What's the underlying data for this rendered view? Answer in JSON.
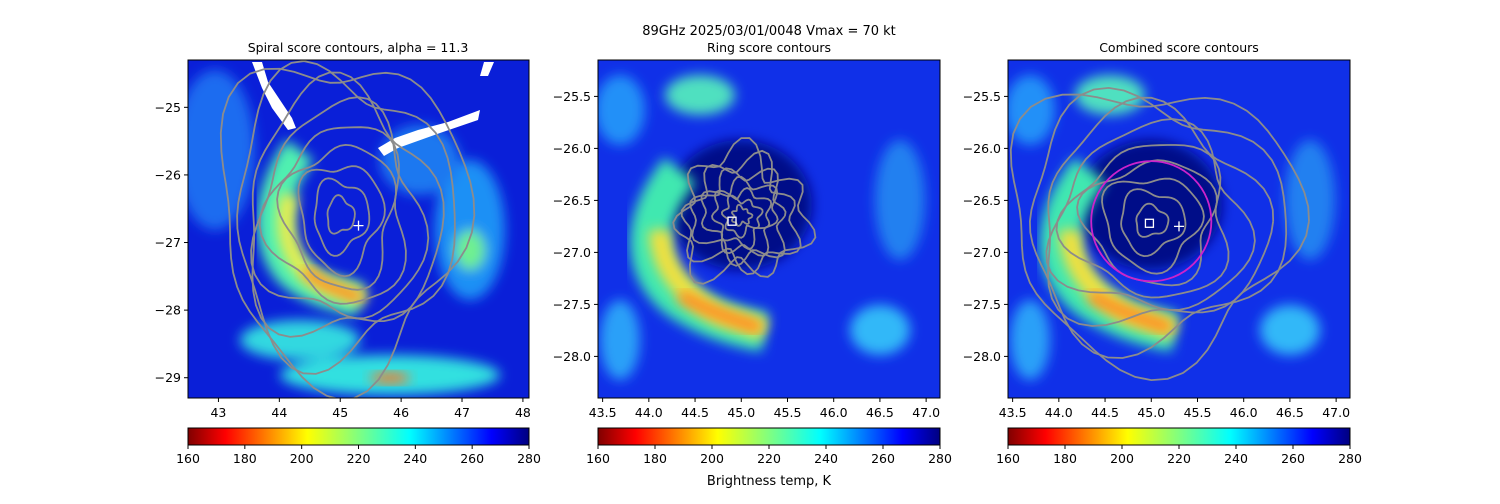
{
  "figure": {
    "suptitle_line1": "89GHz  2025/03/01/0048    Vmax = 70 kt",
    "colorbar_label": "Brightness temp, K"
  },
  "chart_data": [
    {
      "type": "heatmap",
      "title": "Spiral score contours, alpha = 11.3",
      "xlim": [
        42.5,
        48.1
      ],
      "ylim": [
        -29.3,
        -24.3
      ],
      "xticks": [
        "43",
        "44",
        "45",
        "46",
        "47",
        "48"
      ],
      "xtick_values": [
        43,
        44,
        45,
        46,
        47,
        48
      ],
      "yticks": [
        "−25",
        "−26",
        "−27",
        "−28",
        "−29"
      ],
      "ytick_values": [
        -25,
        -26,
        -27,
        -28,
        -29
      ],
      "contour_center": [
        45.0,
        -26.6
      ],
      "markers": [
        {
          "symbol": "+",
          "x": 45.3,
          "y": -26.75
        }
      ]
    },
    {
      "type": "heatmap",
      "title": "Ring score contours",
      "xlim": [
        43.45,
        47.15
      ],
      "ylim": [
        -28.4,
        -25.15
      ],
      "xticks": [
        "43.5",
        "44.0",
        "44.5",
        "45.0",
        "45.5",
        "46.0",
        "46.5",
        "47.0"
      ],
      "xtick_values": [
        43.5,
        44.0,
        44.5,
        45.0,
        45.5,
        46.0,
        46.5,
        47.0
      ],
      "yticks": [
        "−25.5",
        "−26.0",
        "−26.5",
        "−27.0",
        "−27.5",
        "−28.0"
      ],
      "ytick_values": [
        -25.5,
        -26.0,
        -26.5,
        -27.0,
        -27.5,
        -28.0
      ],
      "contour_center": [
        45.0,
        -26.65
      ],
      "markers": [
        {
          "symbol": "square",
          "x": 44.9,
          "y": -26.7
        }
      ]
    },
    {
      "type": "heatmap",
      "title": "Combined score contours",
      "xlim": [
        43.45,
        47.15
      ],
      "ylim": [
        -28.4,
        -25.15
      ],
      "xticks": [
        "43.5",
        "44.0",
        "44.5",
        "45.0",
        "45.5",
        "46.0",
        "46.5",
        "47.0"
      ],
      "xtick_values": [
        43.5,
        44.0,
        44.5,
        45.0,
        45.5,
        46.0,
        46.5,
        47.0
      ],
      "yticks": [
        "−25.5",
        "−26.0",
        "−26.5",
        "−27.0",
        "−27.5",
        "−28.0"
      ],
      "ytick_values": [
        -25.5,
        -26.0,
        -26.5,
        -27.0,
        -27.5,
        -28.0
      ],
      "contour_center": [
        45.0,
        -26.7
      ],
      "ring": {
        "center": [
          45.0,
          -26.7
        ],
        "radius_deg": 0.65,
        "color": "#cc22cc"
      },
      "markers": [
        {
          "symbol": "square",
          "x": 44.98,
          "y": -26.72
        },
        {
          "symbol": "+",
          "x": 45.3,
          "y": -26.75
        }
      ]
    }
  ],
  "colorbar": {
    "range": [
      160,
      280
    ],
    "ticks": [
      "160",
      "180",
      "200",
      "220",
      "240",
      "260",
      "280"
    ],
    "tick_values": [
      160,
      180,
      200,
      220,
      240,
      260,
      280
    ],
    "colormap": "jet_r"
  },
  "colors": {
    "contour": "#8c8c8c",
    "background_cold": "#0a1fd8",
    "marker": "#ffffff"
  }
}
